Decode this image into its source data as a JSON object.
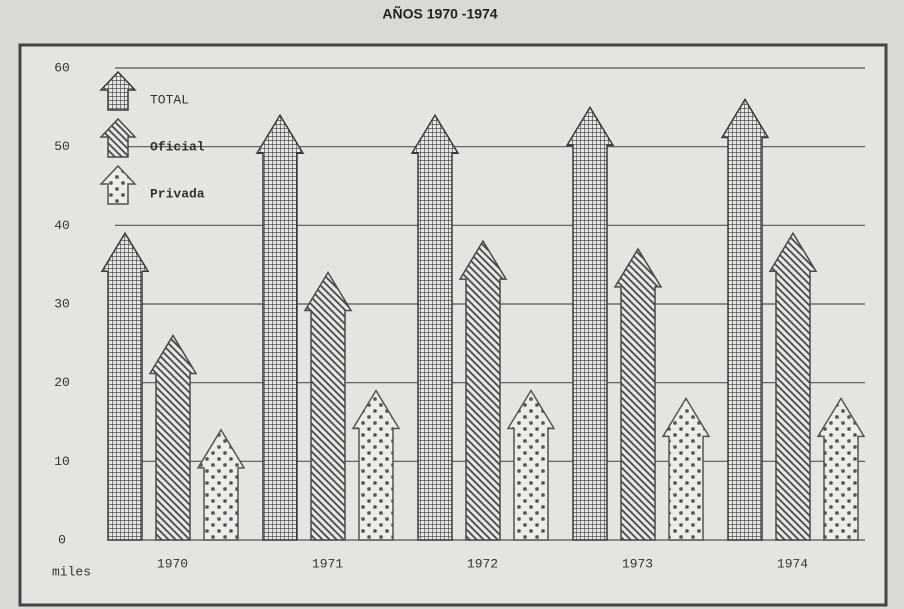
{
  "chart_data": {
    "type": "arrow-bar",
    "title": "AÑOS 1970 -1974",
    "y_unit": "miles",
    "categories": [
      "1970",
      "1971",
      "1972",
      "1973",
      "1974"
    ],
    "series": [
      {
        "name": "TOTAL",
        "color": "#3a3a3a",
        "values": [
          39,
          54,
          54,
          55,
          56
        ]
      },
      {
        "name": "Oficial",
        "color": "#4a4a4a",
        "values": [
          26,
          34,
          38,
          37,
          39
        ]
      },
      {
        "name": "Privada",
        "color": "#555555",
        "values": [
          14,
          19,
          19,
          18,
          18
        ]
      }
    ],
    "ylim": [
      0,
      60
    ],
    "yticks": [
      0,
      10,
      20,
      30,
      40,
      50,
      60
    ],
    "grid": true,
    "legend": "top-left"
  }
}
